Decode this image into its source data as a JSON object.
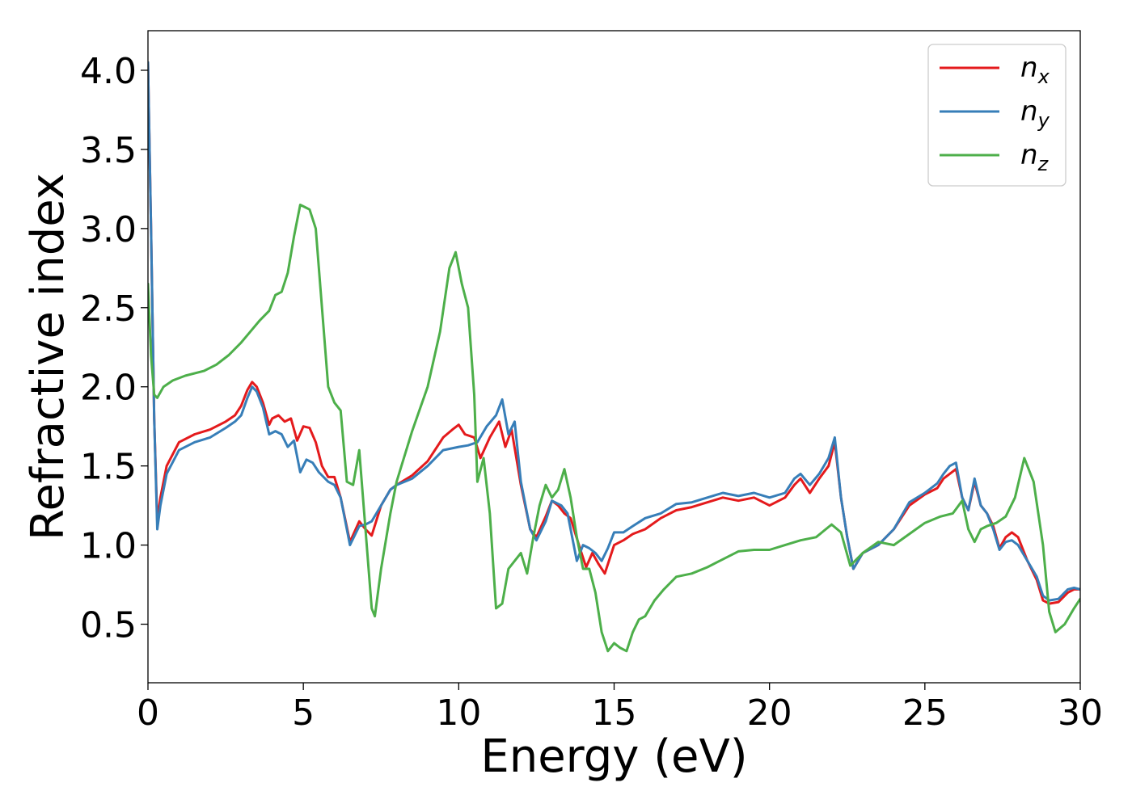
{
  "chart_data": {
    "type": "line",
    "title": "",
    "xlabel": "Energy (eV)",
    "ylabel": "Refractive index",
    "xlim": [
      0,
      30
    ],
    "ylim": [
      0.13,
      4.25
    ],
    "xticks": [
      0,
      5,
      10,
      15,
      20,
      25,
      30
    ],
    "yticks": [
      0.5,
      1.0,
      1.5,
      2.0,
      2.5,
      3.0,
      3.5,
      4.0
    ],
    "xtick_labels": [
      "0",
      "5",
      "10",
      "15",
      "20",
      "25",
      "30"
    ],
    "ytick_labels": [
      "0.5",
      "1.0",
      "1.5",
      "2.0",
      "2.5",
      "3.0",
      "3.5",
      "4.0"
    ],
    "grid": false,
    "legend_position": "top-right",
    "series": [
      {
        "name": "n_x",
        "label_base": "n",
        "label_sub": "x",
        "color": "#e41a1c",
        "x": [
          0,
          0.1,
          0.2,
          0.3,
          0.4,
          0.6,
          1.0,
          1.5,
          2.0,
          2.5,
          2.8,
          3.0,
          3.2,
          3.35,
          3.5,
          3.7,
          3.9,
          4.0,
          4.2,
          4.4,
          4.6,
          4.8,
          5.0,
          5.2,
          5.4,
          5.6,
          5.8,
          6.0,
          6.2,
          6.5,
          6.8,
          7.0,
          7.2,
          7.5,
          7.8,
          8.0,
          8.5,
          9.0,
          9.5,
          9.8,
          10.0,
          10.2,
          10.5,
          10.7,
          11.0,
          11.3,
          11.5,
          11.7,
          12.0,
          12.3,
          12.5,
          12.8,
          13.0,
          13.2,
          13.4,
          13.6,
          13.9,
          14.1,
          14.3,
          14.5,
          14.7,
          15.0,
          15.3,
          15.6,
          16.0,
          16.5,
          17.0,
          17.5,
          18.0,
          18.5,
          19.0,
          19.5,
          20.0,
          20.5,
          20.8,
          21.0,
          21.3,
          21.6,
          21.9,
          22.1,
          22.3,
          22.5,
          22.7,
          23.0,
          23.5,
          24.0,
          24.5,
          25.0,
          25.4,
          25.6,
          25.8,
          26.0,
          26.2,
          26.4,
          26.6,
          26.8,
          27.0,
          27.2,
          27.4,
          27.6,
          27.8,
          28.0,
          28.3,
          28.6,
          28.8,
          29.0,
          29.3,
          29.6,
          29.8,
          30.0
        ],
        "values": [
          4.05,
          3.0,
          1.8,
          1.15,
          1.3,
          1.5,
          1.65,
          1.7,
          1.73,
          1.78,
          1.82,
          1.88,
          1.98,
          2.03,
          2.0,
          1.9,
          1.76,
          1.8,
          1.82,
          1.78,
          1.8,
          1.66,
          1.75,
          1.74,
          1.65,
          1.5,
          1.43,
          1.43,
          1.3,
          1.02,
          1.15,
          1.1,
          1.06,
          1.25,
          1.35,
          1.38,
          1.44,
          1.53,
          1.68,
          1.73,
          1.76,
          1.7,
          1.68,
          1.55,
          1.68,
          1.78,
          1.62,
          1.73,
          1.38,
          1.1,
          1.05,
          1.18,
          1.28,
          1.25,
          1.2,
          1.17,
          0.98,
          0.86,
          0.95,
          0.88,
          0.82,
          1.0,
          1.03,
          1.07,
          1.1,
          1.17,
          1.22,
          1.24,
          1.27,
          1.3,
          1.28,
          1.3,
          1.25,
          1.3,
          1.38,
          1.42,
          1.33,
          1.42,
          1.5,
          1.65,
          1.3,
          1.05,
          0.85,
          0.95,
          1.0,
          1.1,
          1.25,
          1.32,
          1.36,
          1.42,
          1.45,
          1.48,
          1.3,
          1.22,
          1.4,
          1.25,
          1.2,
          1.12,
          0.98,
          1.05,
          1.08,
          1.05,
          0.9,
          0.78,
          0.65,
          0.63,
          0.64,
          0.7,
          0.72,
          0.72
        ]
      },
      {
        "name": "n_y",
        "label_base": "n",
        "label_sub": "y",
        "color": "#377eb8",
        "x": [
          0,
          0.1,
          0.2,
          0.3,
          0.4,
          0.6,
          1.0,
          1.5,
          2.0,
          2.5,
          2.8,
          3.0,
          3.2,
          3.35,
          3.5,
          3.7,
          3.9,
          4.1,
          4.3,
          4.5,
          4.7,
          4.9,
          5.1,
          5.3,
          5.5,
          5.8,
          6.0,
          6.2,
          6.5,
          6.8,
          7.0,
          7.2,
          7.5,
          7.8,
          8.0,
          8.5,
          9.0,
          9.5,
          10.0,
          10.3,
          10.6,
          10.9,
          11.2,
          11.4,
          11.6,
          11.8,
          12.0,
          12.3,
          12.5,
          12.8,
          13.0,
          13.3,
          13.5,
          13.8,
          14.0,
          14.2,
          14.4,
          14.6,
          14.8,
          15.0,
          15.3,
          15.6,
          16.0,
          16.5,
          17.0,
          17.5,
          18.0,
          18.5,
          19.0,
          19.5,
          20.0,
          20.5,
          20.8,
          21.0,
          21.3,
          21.6,
          21.9,
          22.1,
          22.3,
          22.5,
          22.7,
          23.0,
          23.5,
          24.0,
          24.5,
          25.0,
          25.4,
          25.6,
          25.8,
          26.0,
          26.2,
          26.4,
          26.6,
          26.8,
          27.0,
          27.2,
          27.4,
          27.6,
          27.8,
          28.0,
          28.3,
          28.6,
          28.8,
          29.0,
          29.3,
          29.6,
          29.8,
          30.0
        ],
        "values": [
          4.05,
          3.0,
          1.8,
          1.1,
          1.25,
          1.45,
          1.6,
          1.65,
          1.68,
          1.74,
          1.78,
          1.82,
          1.93,
          2.0,
          1.97,
          1.87,
          1.7,
          1.72,
          1.7,
          1.62,
          1.66,
          1.46,
          1.54,
          1.52,
          1.46,
          1.4,
          1.38,
          1.3,
          1.0,
          1.12,
          1.13,
          1.15,
          1.25,
          1.35,
          1.38,
          1.42,
          1.5,
          1.6,
          1.62,
          1.63,
          1.65,
          1.75,
          1.82,
          1.92,
          1.7,
          1.78,
          1.4,
          1.1,
          1.03,
          1.15,
          1.28,
          1.25,
          1.2,
          0.9,
          1.0,
          0.98,
          0.95,
          0.9,
          0.98,
          1.08,
          1.08,
          1.12,
          1.17,
          1.2,
          1.26,
          1.27,
          1.3,
          1.33,
          1.31,
          1.33,
          1.3,
          1.33,
          1.42,
          1.45,
          1.38,
          1.45,
          1.55,
          1.68,
          1.3,
          1.05,
          0.85,
          0.95,
          1.0,
          1.1,
          1.27,
          1.33,
          1.39,
          1.45,
          1.5,
          1.52,
          1.3,
          1.22,
          1.42,
          1.25,
          1.2,
          1.1,
          0.97,
          1.02,
          1.03,
          1.0,
          0.9,
          0.8,
          0.68,
          0.65,
          0.66,
          0.72,
          0.73,
          0.72
        ]
      },
      {
        "name": "n_z",
        "label_base": "n",
        "label_sub": "z",
        "color": "#4daf4a",
        "x": [
          0,
          0.1,
          0.2,
          0.3,
          0.5,
          0.8,
          1.2,
          1.8,
          2.2,
          2.6,
          3.0,
          3.3,
          3.6,
          3.9,
          4.1,
          4.3,
          4.5,
          4.7,
          4.9,
          5.0,
          5.2,
          5.4,
          5.6,
          5.8,
          6.0,
          6.2,
          6.4,
          6.6,
          6.8,
          7.0,
          7.2,
          7.3,
          7.5,
          7.8,
          8.0,
          8.5,
          9.0,
          9.4,
          9.7,
          9.9,
          10.1,
          10.3,
          10.5,
          10.6,
          10.8,
          11.0,
          11.2,
          11.4,
          11.6,
          11.8,
          12.0,
          12.2,
          12.4,
          12.6,
          12.8,
          13.0,
          13.2,
          13.4,
          13.6,
          13.8,
          14.0,
          14.2,
          14.4,
          14.6,
          14.8,
          15.0,
          15.2,
          15.4,
          15.6,
          15.8,
          16.0,
          16.3,
          16.6,
          17.0,
          17.5,
          18.0,
          18.5,
          19.0,
          19.5,
          20.0,
          20.5,
          21.0,
          21.5,
          22.0,
          22.3,
          22.6,
          23.0,
          23.5,
          24.0,
          24.5,
          25.0,
          25.5,
          25.9,
          26.2,
          26.4,
          26.6,
          26.8,
          27.0,
          27.3,
          27.6,
          27.9,
          28.2,
          28.5,
          28.8,
          29.0,
          29.2,
          29.5,
          29.8,
          30.0
        ],
        "values": [
          2.65,
          2.2,
          1.95,
          1.93,
          2.0,
          2.04,
          2.07,
          2.1,
          2.14,
          2.2,
          2.28,
          2.35,
          2.42,
          2.48,
          2.58,
          2.6,
          2.72,
          2.95,
          3.15,
          3.14,
          3.12,
          3.0,
          2.5,
          2.0,
          1.9,
          1.85,
          1.4,
          1.38,
          1.6,
          1.1,
          0.6,
          0.55,
          0.85,
          1.2,
          1.4,
          1.72,
          2.0,
          2.35,
          2.75,
          2.85,
          2.65,
          2.5,
          1.95,
          1.4,
          1.55,
          1.2,
          0.6,
          0.63,
          0.85,
          0.9,
          0.95,
          0.82,
          1.05,
          1.25,
          1.38,
          1.3,
          1.35,
          1.48,
          1.3,
          1.05,
          0.85,
          0.85,
          0.7,
          0.45,
          0.33,
          0.38,
          0.35,
          0.33,
          0.45,
          0.53,
          0.55,
          0.65,
          0.72,
          0.8,
          0.82,
          0.86,
          0.91,
          0.96,
          0.97,
          0.97,
          1.0,
          1.03,
          1.05,
          1.13,
          1.08,
          0.87,
          0.95,
          1.02,
          1.0,
          1.07,
          1.14,
          1.18,
          1.2,
          1.28,
          1.1,
          1.02,
          1.1,
          1.12,
          1.14,
          1.18,
          1.3,
          1.55,
          1.4,
          1.0,
          0.58,
          0.45,
          0.5,
          0.6,
          0.66
        ]
      }
    ]
  }
}
